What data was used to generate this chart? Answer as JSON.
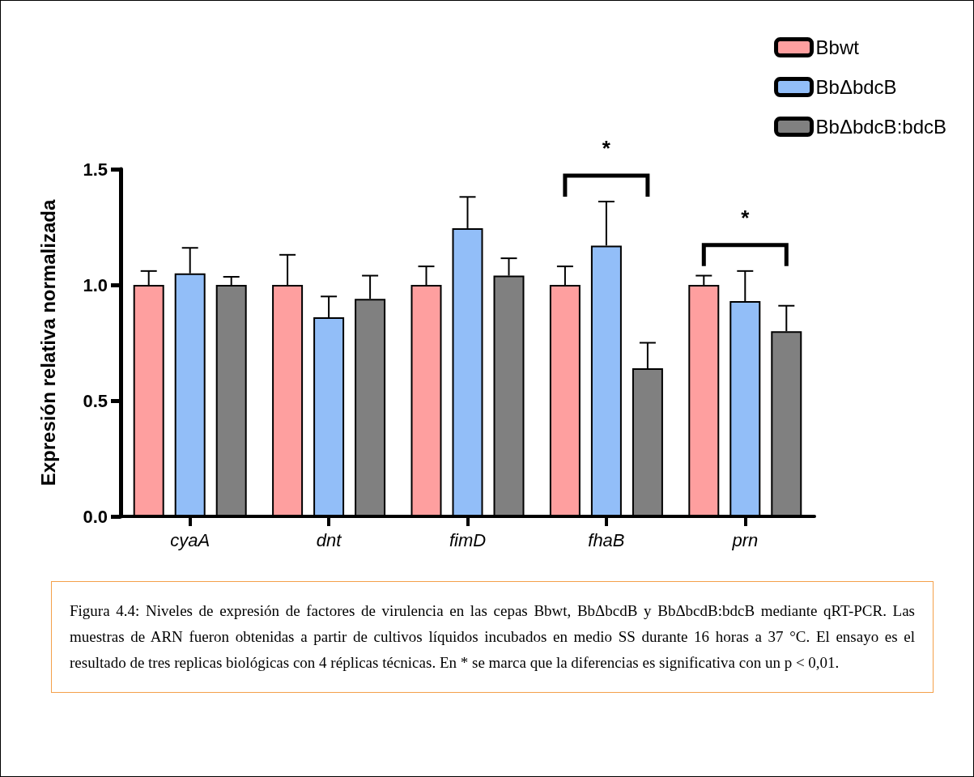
{
  "chart_data": {
    "type": "bar",
    "ylabel": "Expresión relativa normalizada",
    "categories": [
      "cyaA",
      "dnt",
      "fimD",
      "fhaB",
      "prn"
    ],
    "series": [
      {
        "name": "Bbwt",
        "color": "#fe9f9f",
        "values": [
          1.0,
          1.0,
          1.0,
          1.0,
          1.0
        ],
        "errors": [
          [
            1.0,
            1.06
          ],
          [
            1.0,
            1.13
          ],
          [
            1.0,
            1.08
          ],
          [
            1.0,
            1.08
          ],
          [
            1.0,
            1.04
          ]
        ]
      },
      {
        "name": "BbΔbdcB",
        "color": "#92bef8",
        "values": [
          1.05,
          0.86,
          1.245,
          1.17,
          0.93
        ],
        "errors": [
          [
            1.05,
            1.16
          ],
          [
            0.86,
            0.95
          ],
          [
            1.245,
            1.38
          ],
          [
            1.17,
            1.36
          ],
          [
            0.93,
            1.06
          ]
        ]
      },
      {
        "name": "BbΔbdcB:bdcB",
        "color": "#808080",
        "values": [
          1.0,
          0.94,
          1.04,
          0.64,
          0.8
        ],
        "errors": [
          [
            1.0,
            1.035
          ],
          [
            0.94,
            1.04
          ],
          [
            1.04,
            1.115
          ],
          [
            0.64,
            0.75
          ],
          [
            0.8,
            0.91
          ]
        ]
      }
    ],
    "ylim": [
      0,
      1.5
    ],
    "yticks": [
      {
        "value": 0,
        "label": "0.0"
      },
      {
        "value": 0.5,
        "label": "0.5"
      },
      {
        "value": 1,
        "label": "1.0"
      },
      {
        "value": 1.5,
        "label": "1.5"
      }
    ],
    "grid": false,
    "legend": "top right",
    "annotations": [
      "*",
      "*",
      "Figura 4.4: Niveles de expresión de factores de virulencia en las cepas Bbwt, BbΔbcdB y BbΔbcdB:bdcB mediante qRT-PCR. Las muestras de ARN fueron obtenidas a partir de cultivos líquidos incubados en medio SS durante 16 horas a 37 °C. El ensayo es el resultado de tres replicas biológicas con 4 réplicas técnicas. En * se marca que la diferencias es significativa con un p < 0,01."
    ]
  }
}
